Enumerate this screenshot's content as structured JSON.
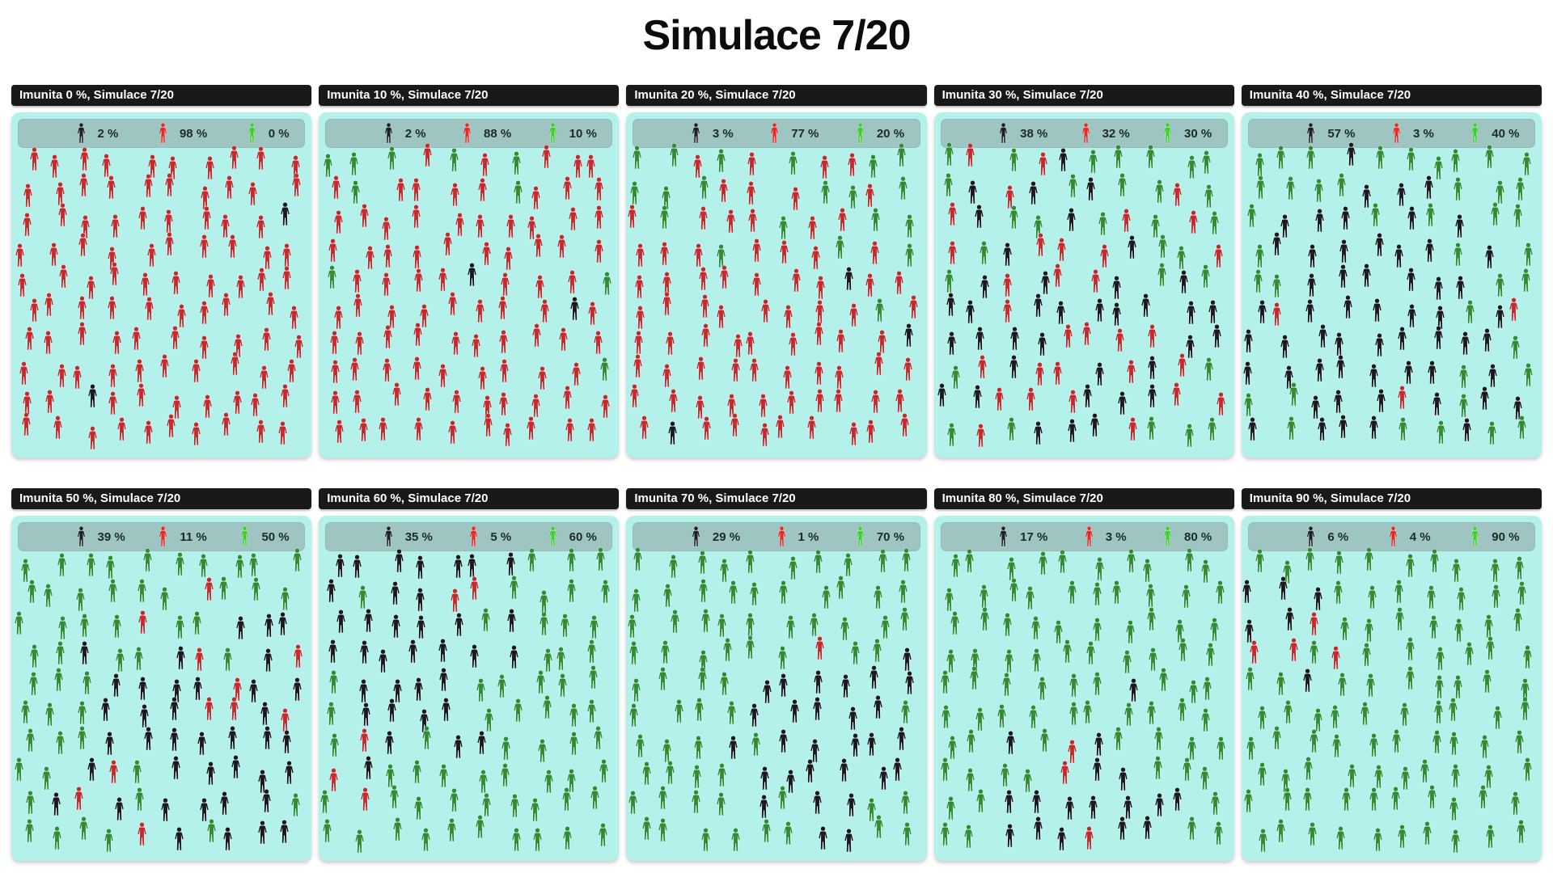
{
  "title": "Simulace 7/20",
  "colors": {
    "page_bg": "#ffffff",
    "field_bg": "#b4f1ea",
    "statsbar_bg": "#9ec5c1",
    "header_bg": "#191919",
    "header_text": "#ffffff",
    "black_person": "#17191c",
    "red_person": "#c32a2e",
    "green_person": "#2f8c34",
    "legend_black": "#1d1f22",
    "legend_red": "#e42a24",
    "legend_green": "#41cd32",
    "stat_text": "#1d2b28"
  },
  "legend_keys": [
    "black",
    "red",
    "green"
  ],
  "panels": [
    {
      "header": "Imunita 0 %, Simulace 7/20",
      "stats": {
        "black": "2 %",
        "red": "98 %",
        "green": "0 %"
      },
      "counts": {
        "black": 2,
        "red": 98,
        "green": 0
      }
    },
    {
      "header": "Imunita 10 %, Simulace 7/20",
      "stats": {
        "black": "2 %",
        "red": "88 %",
        "green": "10 %"
      },
      "counts": {
        "black": 2,
        "red": 88,
        "green": 10
      }
    },
    {
      "header": "Imunita 20 %, Simulace 7/20",
      "stats": {
        "black": "3 %",
        "red": "77 %",
        "green": "20 %"
      },
      "counts": {
        "black": 3,
        "red": 77,
        "green": 20
      }
    },
    {
      "header": "Imunita 30 %, Simulace 7/20",
      "stats": {
        "black": "38 %",
        "red": "32 %",
        "green": "30 %"
      },
      "counts": {
        "black": 38,
        "red": 32,
        "green": 30
      }
    },
    {
      "header": "Imunita 40 %, Simulace 7/20",
      "stats": {
        "black": "57 %",
        "red": "3 %",
        "green": "40 %"
      },
      "counts": {
        "black": 57,
        "red": 3,
        "green": 40
      }
    },
    {
      "header": "Imunita 50 %, Simulace 7/20",
      "stats": {
        "black": "39 %",
        "red": "11 %",
        "green": "50 %"
      },
      "counts": {
        "black": 39,
        "red": 11,
        "green": 50
      }
    },
    {
      "header": "Imunita 60 %, Simulace 7/20",
      "stats": {
        "black": "35 %",
        "red": "5 %",
        "green": "60 %"
      },
      "counts": {
        "black": 35,
        "red": 5,
        "green": 60
      }
    },
    {
      "header": "Imunita 70 %, Simulace 7/20",
      "stats": {
        "black": "29 %",
        "red": "1 %",
        "green": "70 %"
      },
      "counts": {
        "black": 29,
        "red": 1,
        "green": 70
      }
    },
    {
      "header": "Imunita 80 %, Simulace 7/20",
      "stats": {
        "black": "17 %",
        "red": "3 %",
        "green": "80 %"
      },
      "counts": {
        "black": 17,
        "red": 3,
        "green": 80
      }
    },
    {
      "header": "Imunita 90 %, Simulace 7/20",
      "stats": {
        "black": "6 %",
        "red": "4 %",
        "green": "90 %"
      },
      "counts": {
        "black": 6,
        "red": 4,
        "green": 90
      }
    }
  ],
  "chart_data": {
    "type": "pictograph",
    "title": "Simulace 7/20",
    "xlabel": "Imunita",
    "unit": "%",
    "people_per_panel": 100,
    "categories": [
      "0 %",
      "10 %",
      "20 %",
      "30 %",
      "40 %",
      "50 %",
      "60 %",
      "70 %",
      "80 %",
      "90 %"
    ],
    "series": [
      {
        "name": "black",
        "values": [
          2,
          2,
          3,
          38,
          57,
          39,
          35,
          29,
          17,
          6
        ]
      },
      {
        "name": "red",
        "values": [
          98,
          88,
          77,
          32,
          3,
          11,
          5,
          1,
          3,
          4
        ]
      },
      {
        "name": "green",
        "values": [
          0,
          10,
          20,
          30,
          40,
          50,
          60,
          70,
          80,
          90
        ]
      }
    ],
    "legend_position": "top-of-each-panel",
    "grid": false
  }
}
